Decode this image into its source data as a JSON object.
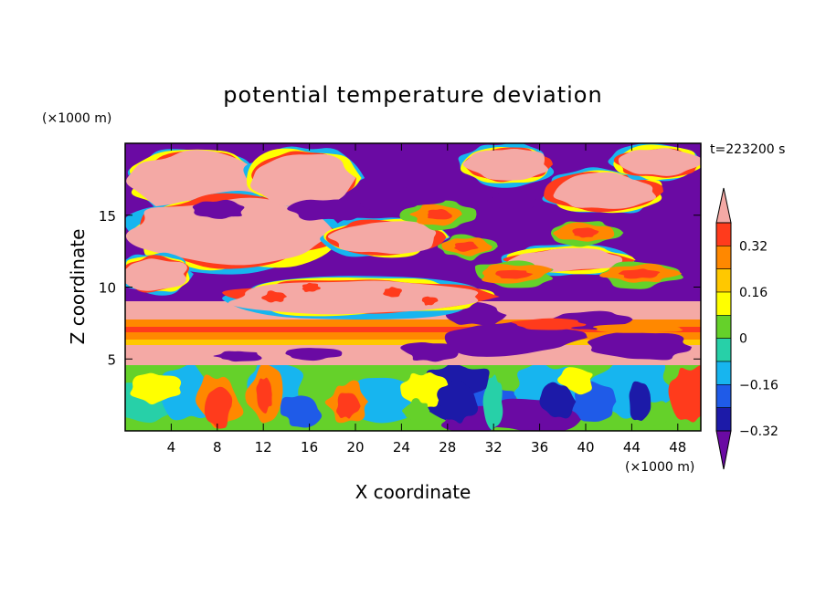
{
  "chart_data": {
    "type": "heatmap",
    "title": "potential temperature deviation",
    "xlabel": "X coordinate",
    "ylabel": "Z coordinate",
    "x_unit": "(×1000 m)",
    "y_unit": "(×1000 m)",
    "time_label": "t=223200 s",
    "xlim": [
      0,
      50
    ],
    "ylim": [
      0,
      20
    ],
    "x_ticks": [
      "4",
      "8",
      "12",
      "16",
      "20",
      "24",
      "28",
      "32",
      "36",
      "40",
      "44",
      "48"
    ],
    "x_tick_values": [
      4,
      8,
      12,
      16,
      20,
      24,
      28,
      32,
      36,
      40,
      44,
      48
    ],
    "y_ticks": [
      "5",
      "10",
      "15"
    ],
    "y_tick_values": [
      5,
      10,
      15
    ],
    "colorbar": {
      "levels": [
        -0.4,
        -0.32,
        -0.24,
        -0.16,
        -0.08,
        0,
        0.08,
        0.16,
        0.24,
        0.32,
        0.4
      ],
      "tick_labels": [
        "0.32",
        "0.16",
        "0",
        "−0.16",
        "−0.32"
      ],
      "tick_values": [
        0.32,
        0.16,
        0,
        -0.16,
        -0.32
      ],
      "colors": [
        "#6a0aa3",
        "#1c1aa8",
        "#1f5be8",
        "#17b5ef",
        "#27d0a8",
        "#65d12a",
        "#ffff00",
        "#ffc800",
        "#ff8800",
        "#ff3b1c",
        "#f4a9a5"
      ],
      "extend": "both"
    },
    "regions": [
      {
        "name": "upper layer",
        "z_range": [
          10,
          20
        ],
        "dominant": [
          "pink",
          "purple"
        ]
      },
      {
        "name": "stable band",
        "z_range": [
          5,
          9
        ],
        "dominant": [
          "pink",
          "red",
          "orange",
          "yellow"
        ]
      },
      {
        "name": "lower layer",
        "z_range": [
          0,
          5
        ],
        "dominant": [
          "green",
          "cyan",
          "blue",
          "red"
        ]
      }
    ]
  }
}
